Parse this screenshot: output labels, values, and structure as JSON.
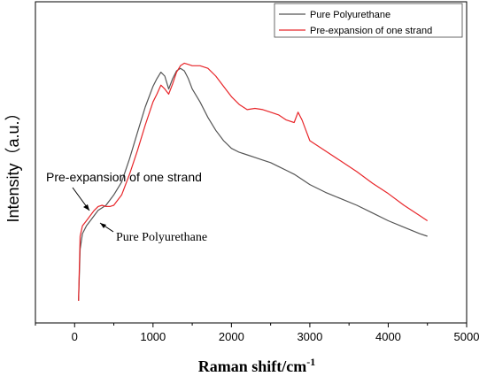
{
  "chart_data": {
    "type": "line",
    "xlabel": "Raman shift/cm",
    "xlabel_sup": "-1",
    "ylabel": "Intensity（a.u.）",
    "xlim": [
      -500,
      5000
    ],
    "ylim": [
      0,
      1
    ],
    "x_ticks": [
      "0",
      "1000",
      "2000",
      "3000",
      "4000",
      "5000"
    ],
    "y_ticks_shown": false,
    "legend_position": "top-right",
    "series": [
      {
        "name": "Pure Polyurethane",
        "color": "#555555",
        "x": [
          50,
          70,
          100,
          150,
          200,
          250,
          300,
          350,
          400,
          450,
          500,
          600,
          700,
          800,
          900,
          1000,
          1050,
          1100,
          1150,
          1200,
          1250,
          1300,
          1350,
          1400,
          1450,
          1500,
          1600,
          1700,
          1800,
          1900,
          2000,
          2100,
          2200,
          2300,
          2400,
          2500,
          2600,
          2700,
          2800,
          2900,
          3000,
          3200,
          3400,
          3600,
          3800,
          4000,
          4200,
          4400,
          4500
        ],
        "y": [
          0.0,
          0.2,
          0.26,
          0.29,
          0.31,
          0.33,
          0.35,
          0.36,
          0.37,
          0.39,
          0.41,
          0.46,
          0.55,
          0.65,
          0.75,
          0.83,
          0.86,
          0.885,
          0.87,
          0.82,
          0.86,
          0.89,
          0.9,
          0.89,
          0.86,
          0.82,
          0.77,
          0.71,
          0.66,
          0.62,
          0.59,
          0.575,
          0.565,
          0.555,
          0.545,
          0.535,
          0.52,
          0.505,
          0.49,
          0.47,
          0.45,
          0.42,
          0.395,
          0.37,
          0.34,
          0.31,
          0.285,
          0.26,
          0.25
        ]
      },
      {
        "name": "Pre-expansion of one strand",
        "color": "#e8262a",
        "x": [
          50,
          70,
          100,
          150,
          200,
          250,
          300,
          350,
          400,
          450,
          500,
          600,
          700,
          800,
          900,
          1000,
          1050,
          1100,
          1150,
          1200,
          1250,
          1300,
          1350,
          1400,
          1450,
          1500,
          1600,
          1700,
          1800,
          1900,
          2000,
          2100,
          2200,
          2300,
          2400,
          2500,
          2600,
          2700,
          2800,
          2850,
          2900,
          2950,
          3000,
          3200,
          3400,
          3600,
          3800,
          4000,
          4200,
          4400,
          4500
        ],
        "y": [
          0.0,
          0.25,
          0.29,
          0.31,
          0.33,
          0.35,
          0.365,
          0.37,
          0.365,
          0.365,
          0.37,
          0.41,
          0.49,
          0.58,
          0.68,
          0.77,
          0.8,
          0.835,
          0.82,
          0.8,
          0.84,
          0.885,
          0.91,
          0.92,
          0.915,
          0.91,
          0.91,
          0.9,
          0.87,
          0.83,
          0.79,
          0.76,
          0.74,
          0.745,
          0.74,
          0.73,
          0.72,
          0.7,
          0.69,
          0.73,
          0.7,
          0.66,
          0.62,
          0.58,
          0.54,
          0.5,
          0.455,
          0.415,
          0.37,
          0.33,
          0.31
        ]
      }
    ],
    "annotations": [
      {
        "text": "Pre-expansion of one strand",
        "points_to_series": "Pre-expansion of one strand"
      },
      {
        "text": "Pure Polyurethane",
        "points_to_series": "Pure Polyurethane"
      }
    ]
  }
}
